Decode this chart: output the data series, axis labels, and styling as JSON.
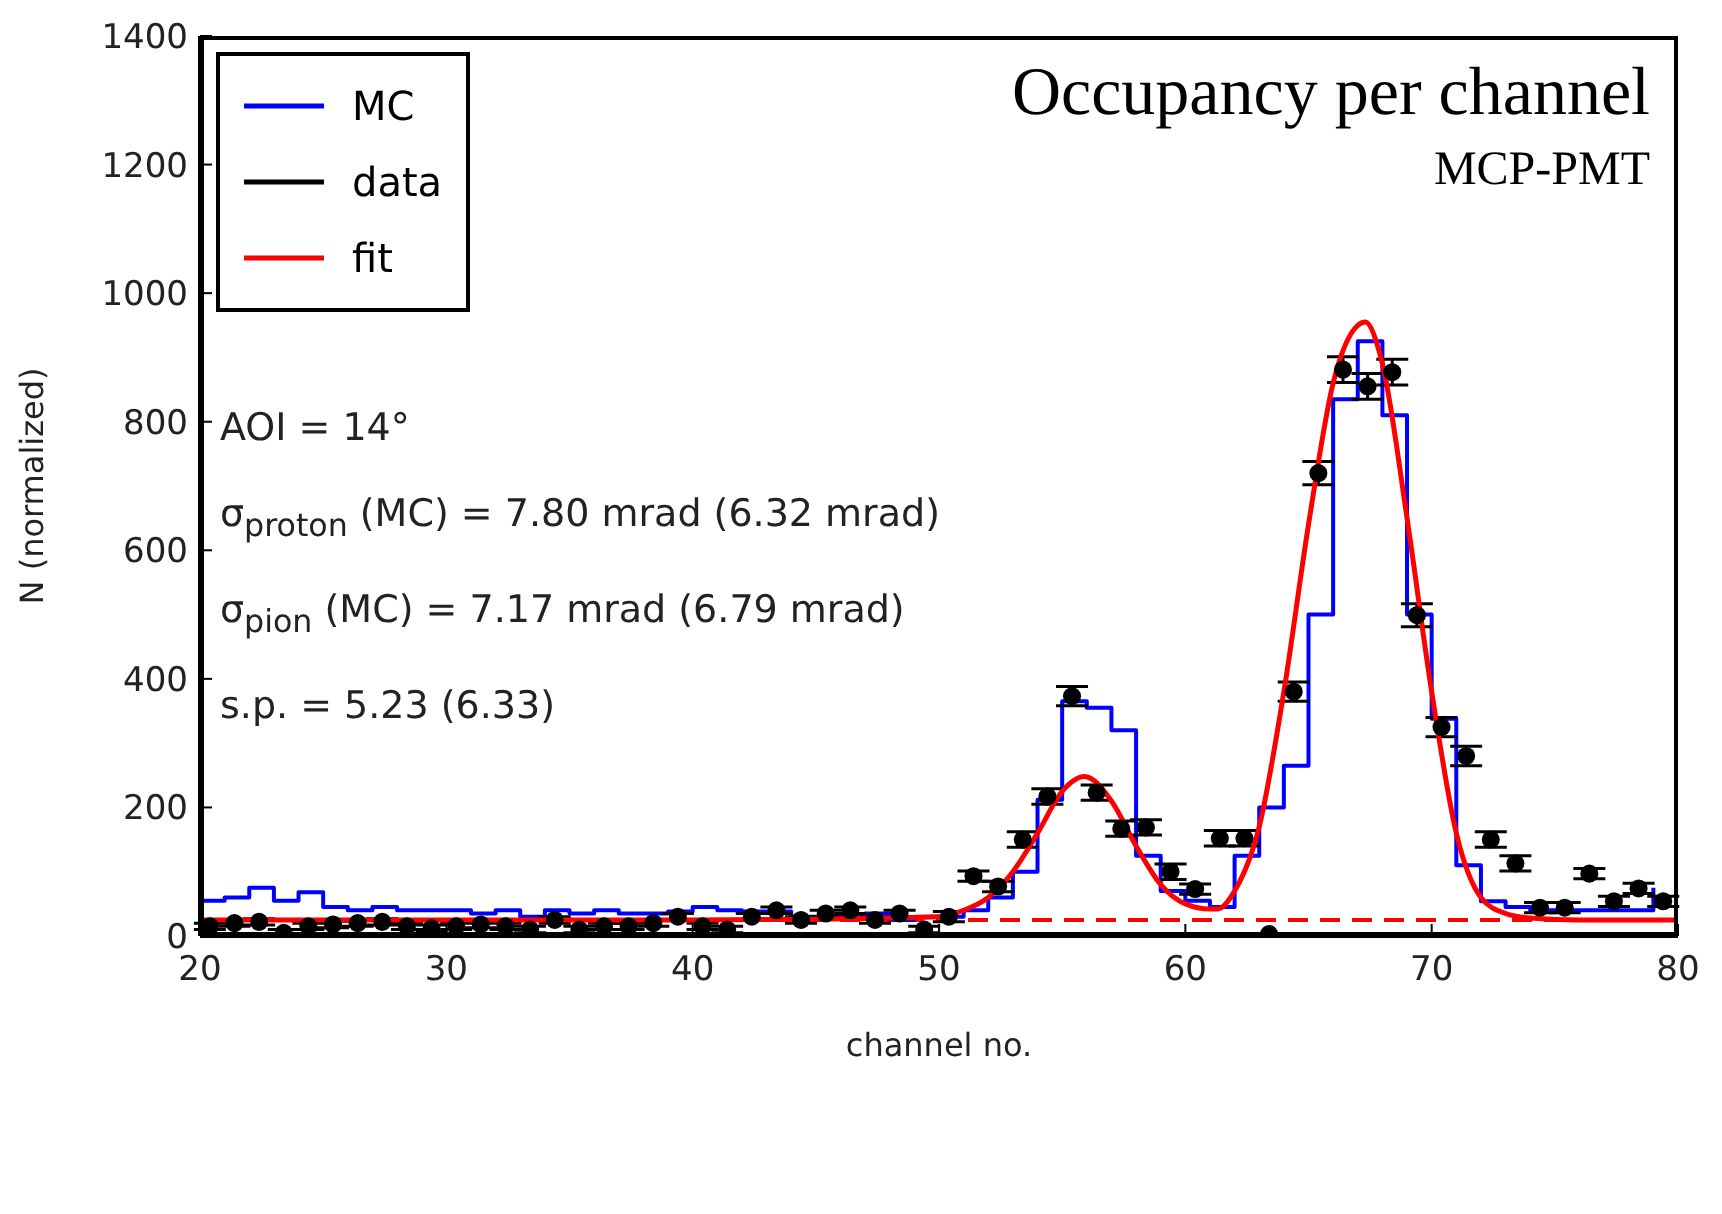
{
  "chart_data": {
    "type": "line",
    "title": "Occupancy per channel",
    "subtitle": "MCP-PMT",
    "xlabel": "channel no.",
    "ylabel": "N (normalized)",
    "xlim": [
      20,
      80
    ],
    "xticks": [
      20,
      30,
      40,
      50,
      60,
      70,
      80
    ],
    "ylim": [
      0,
      1400
    ],
    "yticks": [
      0,
      200,
      400,
      600,
      800,
      1000,
      1200,
      1400
    ],
    "legend": "top left",
    "series": [
      {
        "name": "MC",
        "type": "step",
        "color": "#0000ff",
        "x": [
          20,
          21,
          22,
          23,
          24,
          25,
          26,
          27,
          28,
          29,
          30,
          31,
          32,
          33,
          34,
          35,
          36,
          37,
          38,
          39,
          40,
          41,
          42,
          43,
          44,
          45,
          46,
          47,
          48,
          49,
          50,
          51,
          52,
          53,
          54,
          55,
          56,
          57,
          58,
          59,
          60,
          61,
          62,
          63,
          64,
          65,
          66,
          67,
          68,
          69,
          70,
          71,
          72,
          73,
          74,
          75,
          76,
          77,
          78,
          79
        ],
        "values": [
          55,
          60,
          75,
          55,
          68,
          45,
          40,
          45,
          40,
          40,
          40,
          35,
          40,
          30,
          40,
          35,
          40,
          35,
          35,
          38,
          45,
          40,
          38,
          38,
          30,
          30,
          30,
          35,
          25,
          30,
          30,
          40,
          60,
          100,
          212,
          365,
          355,
          320,
          125,
          70,
          55,
          45,
          125,
          200,
          265,
          500,
          835,
          925,
          810,
          500,
          338,
          110,
          54,
          45,
          40,
          40,
          40,
          40,
          40,
          75
        ]
      },
      {
        "name": "data",
        "type": "scatter",
        "marker": "circle",
        "color": "#000000",
        "x": [
          20.4,
          21.4,
          22.4,
          23.4,
          24.4,
          25.4,
          26.4,
          27.4,
          28.4,
          29.4,
          30.4,
          31.4,
          32.4,
          33.4,
          34.4,
          35.4,
          36.4,
          37.4,
          38.4,
          39.4,
          40.4,
          41.4,
          42.4,
          43.4,
          44.4,
          45.4,
          46.4,
          47.4,
          48.4,
          49.4,
          50.4,
          51.4,
          52.4,
          53.4,
          54.4,
          55.4,
          56.4,
          57.4,
          58.4,
          59.4,
          60.4,
          61.4,
          62.4,
          63.4,
          64.4,
          65.4,
          66.4,
          67.4,
          68.4,
          69.4,
          70.4,
          71.4,
          72.4,
          73.4,
          74.4,
          75.4,
          76.4,
          77.4,
          78.4,
          79.4
        ],
        "values": [
          15,
          20,
          22,
          5,
          15,
          18,
          20,
          22,
          15,
          12,
          15,
          18,
          15,
          10,
          25,
          10,
          15,
          15,
          20,
          30,
          15,
          10,
          30,
          40,
          25,
          35,
          40,
          25,
          35,
          10,
          30,
          93,
          77,
          150,
          217,
          373,
          223,
          167,
          169,
          100,
          73,
          152,
          152,
          3,
          380,
          720,
          881,
          855,
          877,
          499,
          325,
          280,
          150,
          113,
          44,
          44,
          97,
          54,
          74,
          54
        ],
        "errors": [
          5,
          5,
          5,
          5,
          5,
          5,
          5,
          5,
          5,
          5,
          5,
          5,
          5,
          5,
          5,
          5,
          5,
          5,
          5,
          5,
          5,
          5,
          5,
          5,
          5,
          5,
          5,
          5,
          5,
          5,
          8,
          8,
          8,
          12,
          12,
          15,
          12,
          12,
          12,
          12,
          8,
          12,
          12,
          null,
          15,
          18,
          20,
          20,
          20,
          18,
          15,
          15,
          12,
          12,
          8,
          8,
          8,
          8,
          8,
          8
        ]
      },
      {
        "name": "fit",
        "color": "#ff0000",
        "x": [
          20,
          30,
          40,
          45,
          48,
          50,
          51,
          52,
          53,
          54,
          55,
          55.9,
          57,
          58,
          59,
          60,
          61,
          61.3,
          62,
          63,
          64,
          65,
          66,
          67,
          67.3,
          68,
          69,
          70,
          71,
          72,
          73,
          74,
          76,
          80
        ],
        "values": [
          25,
          25,
          25,
          26,
          28,
          30,
          40,
          60,
          100,
          160,
          225,
          248,
          210,
          140,
          80,
          50,
          42,
          42,
          70,
          170,
          380,
          640,
          860,
          950,
          955,
          890,
          650,
          380,
          160,
          60,
          35,
          28,
          25,
          25
        ]
      }
    ],
    "ref_lines": [
      {
        "axis": "y",
        "value": 25,
        "color": "#ff0000",
        "line_style": "dashed"
      }
    ],
    "annotations": [
      "AOI = 14°",
      "σ$_{proton}$ (MC) = 7.80 mrad (6.32 mrad)",
      "σ$_{pion}$ (MC) = 7.17 mrad (6.79 mrad)",
      "s.p. = 5.23 (6.33)"
    ]
  }
}
